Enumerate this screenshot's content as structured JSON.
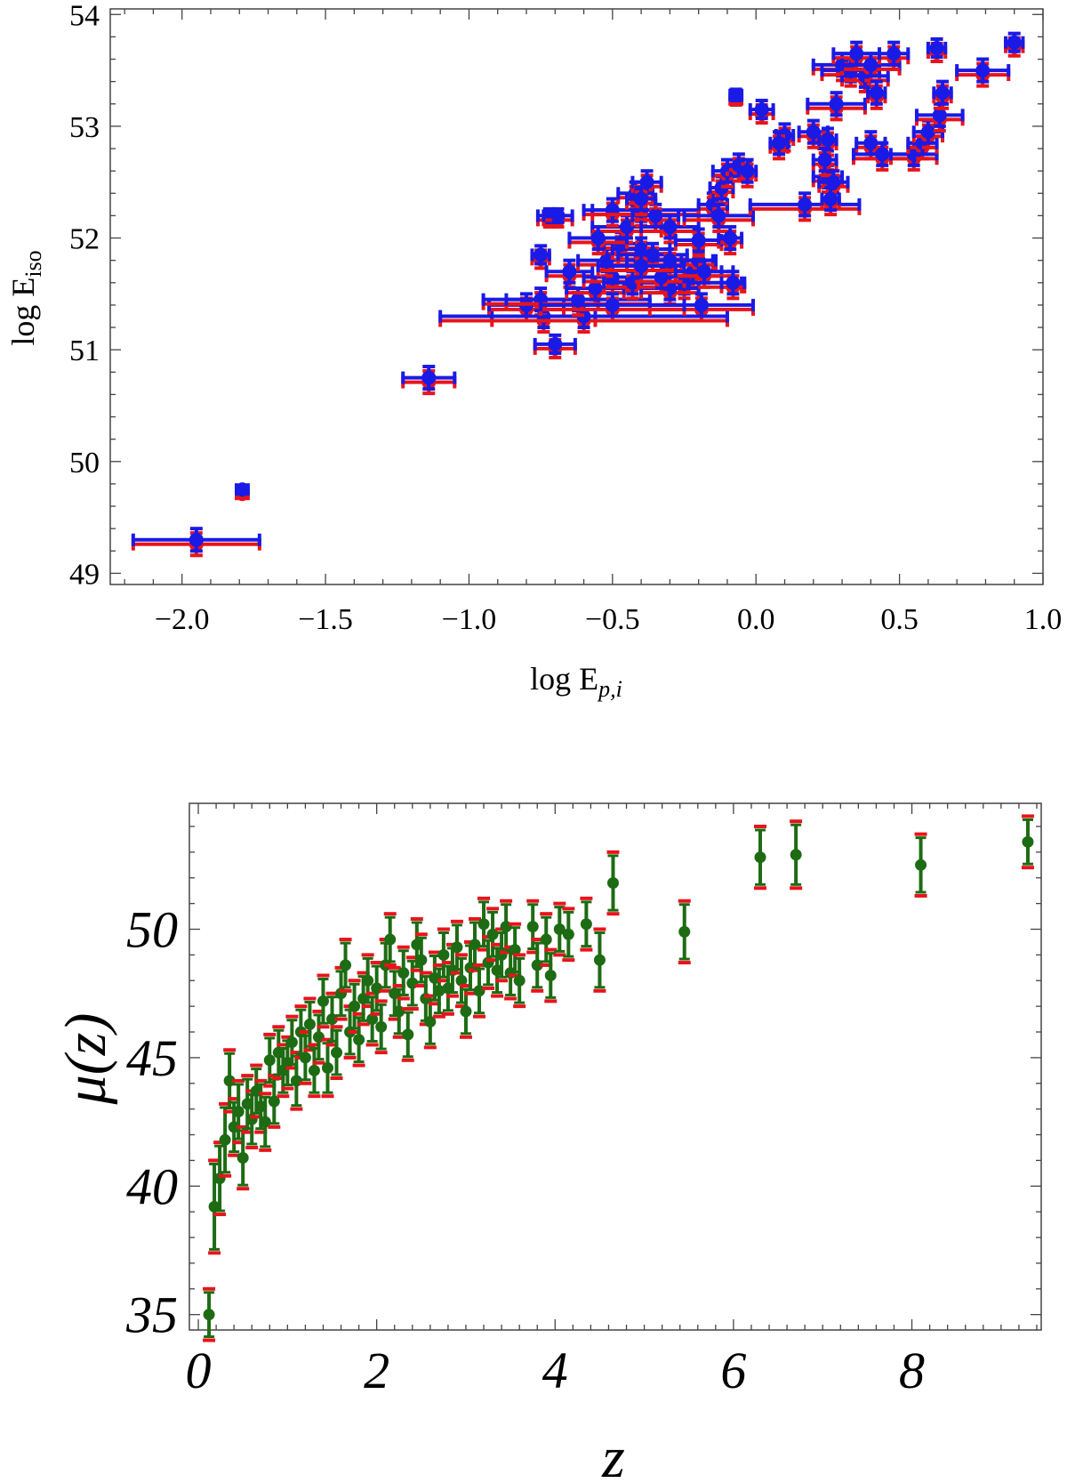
{
  "chart_data": [
    {
      "type": "scatter",
      "xlabel": "log E",
      "xlabel_sub": "p,i",
      "ylabel": "log E",
      "ylabel_sub": "iso",
      "xlim": [
        -2.25,
        1.0
      ],
      "ylim": [
        48.9,
        54.05
      ],
      "xticks": [
        -2.0,
        -1.5,
        -1.0,
        -0.5,
        0.0,
        0.5,
        1.0
      ],
      "xtick_labels": [
        "−2.0",
        "−1.5",
        "−1.0",
        "−0.5",
        "0.0",
        "0.5",
        "1.0"
      ],
      "yticks": [
        49,
        50,
        51,
        52,
        53,
        54
      ],
      "ytick_labels": [
        "49",
        "50",
        "51",
        "52",
        "53",
        "54"
      ],
      "grid": false,
      "colors": {
        "series_a": "#e8141b",
        "series_b": "#1a1ae6"
      },
      "points": [
        [
          -1.95,
          49.3,
          0.22,
          0.1
        ],
        [
          -1.79,
          49.75,
          0.02,
          0.03
        ],
        [
          -1.14,
          50.75,
          0.09,
          0.1
        ],
        [
          -0.75,
          51.85,
          0.03,
          0.08
        ],
        [
          -0.72,
          52.2,
          0.04,
          0.06
        ],
        [
          -0.69,
          52.2,
          0.05,
          0.06
        ],
        [
          -0.7,
          51.05,
          0.07,
          0.08
        ],
        [
          -0.74,
          51.3,
          0.18,
          0.1
        ],
        [
          -0.8,
          51.4,
          0.13,
          0.1
        ],
        [
          -0.75,
          51.45,
          0.2,
          0.1
        ],
        [
          -0.6,
          51.3,
          0.5,
          0.1
        ],
        [
          -0.62,
          51.45,
          0.25,
          0.1
        ],
        [
          -0.65,
          51.7,
          0.08,
          0.1
        ],
        [
          -0.56,
          51.55,
          0.1,
          0.1
        ],
        [
          -0.5,
          51.65,
          0.1,
          0.1
        ],
        [
          -0.52,
          51.8,
          0.1,
          0.1
        ],
        [
          -0.47,
          51.95,
          0.06,
          0.1
        ],
        [
          -0.45,
          52.1,
          0.12,
          0.1
        ],
        [
          -0.5,
          52.25,
          0.07,
          0.1
        ],
        [
          -0.42,
          52.4,
          0.06,
          0.1
        ],
        [
          -0.38,
          52.5,
          0.05,
          0.1
        ],
        [
          -0.4,
          52.25,
          0.2,
          0.1
        ],
        [
          -0.35,
          52.2,
          0.08,
          0.1
        ],
        [
          -0.3,
          52.1,
          0.1,
          0.1
        ],
        [
          -0.4,
          51.9,
          0.1,
          0.1
        ],
        [
          -0.36,
          51.85,
          0.12,
          0.1
        ],
        [
          -0.3,
          51.8,
          0.15,
          0.1
        ],
        [
          -0.22,
          51.7,
          0.1,
          0.1
        ],
        [
          -0.2,
          51.8,
          0.06,
          0.1
        ],
        [
          -0.25,
          51.6,
          0.2,
          0.1
        ],
        [
          -0.3,
          51.55,
          0.1,
          0.1
        ],
        [
          -0.19,
          51.4,
          0.18,
          0.1
        ],
        [
          -0.43,
          51.6,
          0.1,
          0.1
        ],
        [
          -0.33,
          51.65,
          0.08,
          0.1
        ],
        [
          -0.4,
          51.75,
          0.15,
          0.1
        ],
        [
          -0.5,
          51.4,
          0.25,
          0.1
        ],
        [
          -0.2,
          51.98,
          0.08,
          0.1
        ],
        [
          -0.18,
          51.7,
          0.1,
          0.1
        ],
        [
          -0.15,
          52.3,
          0.05,
          0.1
        ],
        [
          -0.12,
          52.45,
          0.04,
          0.1
        ],
        [
          -0.1,
          52.6,
          0.05,
          0.1
        ],
        [
          -0.06,
          52.65,
          0.04,
          0.1
        ],
        [
          -0.03,
          52.6,
          0.03,
          0.1
        ],
        [
          -0.09,
          52.0,
          0.04,
          0.1
        ],
        [
          -0.08,
          51.6,
          0.04,
          0.1
        ],
        [
          -0.13,
          52.2,
          0.12,
          0.1
        ],
        [
          -0.07,
          53.28,
          0.02,
          0.05
        ],
        [
          0.02,
          53.15,
          0.04,
          0.08
        ],
        [
          0.1,
          52.92,
          0.03,
          0.1
        ],
        [
          0.08,
          52.85,
          0.03,
          0.1
        ],
        [
          0.2,
          52.95,
          0.05,
          0.1
        ],
        [
          0.25,
          52.88,
          0.03,
          0.1
        ],
        [
          0.17,
          52.3,
          0.19,
          0.1
        ],
        [
          0.25,
          52.55,
          0.05,
          0.1
        ],
        [
          0.24,
          52.7,
          0.04,
          0.1
        ],
        [
          0.27,
          52.5,
          0.05,
          0.1
        ],
        [
          0.26,
          52.35,
          0.03,
          0.1
        ],
        [
          0.28,
          53.2,
          0.1,
          0.1
        ],
        [
          0.3,
          53.55,
          0.1,
          0.1
        ],
        [
          0.33,
          53.5,
          0.1,
          0.1
        ],
        [
          0.35,
          53.65,
          0.08,
          0.1
        ],
        [
          0.38,
          53.45,
          0.08,
          0.1
        ],
        [
          0.4,
          53.55,
          0.1,
          0.1
        ],
        [
          0.48,
          53.65,
          0.05,
          0.1
        ],
        [
          0.42,
          53.3,
          0.03,
          0.1
        ],
        [
          0.4,
          52.85,
          0.05,
          0.1
        ],
        [
          0.44,
          52.75,
          0.1,
          0.1
        ],
        [
          0.55,
          52.75,
          0.08,
          0.1
        ],
        [
          0.58,
          52.85,
          0.05,
          0.1
        ],
        [
          0.6,
          52.95,
          0.05,
          0.1
        ],
        [
          0.64,
          53.1,
          0.08,
          0.1
        ],
        [
          0.65,
          53.3,
          0.03,
          0.1
        ],
        [
          0.63,
          53.7,
          0.03,
          0.08
        ],
        [
          0.79,
          53.5,
          0.09,
          0.1
        ],
        [
          0.9,
          53.75,
          0.03,
          0.08
        ],
        [
          -0.4,
          52.35,
          0.05,
          0.1
        ],
        [
          -0.55,
          52.0,
          0.1,
          0.1
        ]
      ]
    },
    {
      "type": "scatter",
      "xlabel": "z",
      "ylabel": "μ(z)",
      "xlim": [
        -0.1,
        9.45
      ],
      "ylim": [
        34.4,
        54.9
      ],
      "xticks": [
        0,
        2,
        4,
        6,
        8
      ],
      "xtick_labels": [
        "0",
        "2",
        "4",
        "6",
        "8"
      ],
      "yticks": [
        35,
        40,
        45,
        50
      ],
      "ytick_labels": [
        "35",
        "40",
        "45",
        "50"
      ],
      "grid": false,
      "colors": {
        "error_bar": "#e8141b",
        "point": "#1d6b13"
      },
      "points": [
        [
          0.12,
          35.0,
          1.0
        ],
        [
          0.18,
          39.2,
          1.8
        ],
        [
          0.24,
          40.3,
          1.4
        ],
        [
          0.3,
          41.8,
          1.4
        ],
        [
          0.35,
          44.1,
          1.2
        ],
        [
          0.4,
          42.3,
          1.1
        ],
        [
          0.45,
          42.9,
          1.2
        ],
        [
          0.5,
          41.1,
          1.2
        ],
        [
          0.55,
          43.2,
          1.1
        ],
        [
          0.6,
          42.6,
          1.1
        ],
        [
          0.65,
          43.7,
          1.0
        ],
        [
          0.7,
          43.1,
          1.0
        ],
        [
          0.75,
          42.5,
          1.1
        ],
        [
          0.8,
          44.9,
          1.0
        ],
        [
          0.85,
          43.3,
          1.0
        ],
        [
          0.9,
          45.2,
          1.0
        ],
        [
          0.95,
          44.5,
          1.0
        ],
        [
          1.0,
          44.8,
          1.0
        ],
        [
          1.05,
          45.6,
          1.0
        ],
        [
          1.1,
          44.1,
          1.1
        ],
        [
          1.15,
          46.0,
          1.0
        ],
        [
          1.2,
          45.0,
          1.0
        ],
        [
          1.25,
          46.3,
          1.0
        ],
        [
          1.3,
          44.5,
          1.0
        ],
        [
          1.35,
          45.8,
          1.0
        ],
        [
          1.4,
          47.2,
          1.0
        ],
        [
          1.45,
          44.6,
          1.1
        ],
        [
          1.5,
          46.5,
          1.0
        ],
        [
          1.55,
          45.2,
          1.0
        ],
        [
          1.6,
          47.5,
          1.0
        ],
        [
          1.65,
          48.6,
          1.0
        ],
        [
          1.7,
          46.0,
          1.0
        ],
        [
          1.75,
          47.0,
          1.0
        ],
        [
          1.8,
          45.7,
          1.0
        ],
        [
          1.85,
          47.3,
          1.0
        ],
        [
          1.9,
          48.0,
          1.0
        ],
        [
          1.95,
          46.5,
          1.0
        ],
        [
          2.0,
          47.7,
          1.0
        ],
        [
          2.05,
          46.2,
          1.0
        ],
        [
          2.1,
          48.6,
          1.0
        ],
        [
          2.15,
          49.6,
          1.0
        ],
        [
          2.2,
          47.5,
          1.0
        ],
        [
          2.25,
          46.8,
          1.0
        ],
        [
          2.3,
          48.3,
          1.0
        ],
        [
          2.35,
          45.9,
          1.0
        ],
        [
          2.4,
          47.9,
          1.0
        ],
        [
          2.45,
          49.4,
          1.0
        ],
        [
          2.5,
          48.8,
          1.0
        ],
        [
          2.55,
          47.3,
          1.0
        ],
        [
          2.6,
          46.4,
          1.0
        ],
        [
          2.65,
          48.1,
          1.0
        ],
        [
          2.7,
          47.6,
          1.0
        ],
        [
          2.75,
          49.0,
          1.0
        ],
        [
          2.8,
          47.7,
          1.0
        ],
        [
          2.85,
          48.4,
          1.0
        ],
        [
          2.9,
          49.3,
          1.0
        ],
        [
          2.95,
          48.0,
          1.0
        ],
        [
          3.0,
          46.8,
          1.0
        ],
        [
          3.05,
          48.5,
          1.0
        ],
        [
          3.1,
          49.4,
          1.0
        ],
        [
          3.15,
          47.6,
          1.0
        ],
        [
          3.2,
          50.2,
          1.0
        ],
        [
          3.25,
          48.7,
          1.0
        ],
        [
          3.3,
          49.8,
          1.0
        ],
        [
          3.35,
          48.4,
          1.0
        ],
        [
          3.4,
          49.0,
          1.0
        ],
        [
          3.45,
          50.1,
          1.0
        ],
        [
          3.5,
          48.3,
          1.0
        ],
        [
          3.55,
          49.2,
          1.0
        ],
        [
          3.6,
          48.0,
          1.0
        ],
        [
          3.75,
          50.1,
          1.0
        ],
        [
          3.8,
          48.6,
          1.0
        ],
        [
          3.9,
          49.6,
          1.0
        ],
        [
          3.95,
          48.2,
          1.0
        ],
        [
          4.05,
          50.0,
          1.0
        ],
        [
          4.15,
          49.8,
          1.0
        ],
        [
          4.35,
          50.2,
          1.0
        ],
        [
          4.5,
          48.8,
          1.2
        ],
        [
          4.65,
          51.8,
          1.2
        ],
        [
          5.45,
          49.9,
          1.2
        ],
        [
          6.3,
          52.8,
          1.2
        ],
        [
          6.7,
          52.9,
          1.3
        ],
        [
          8.1,
          52.5,
          1.2
        ],
        [
          9.3,
          53.4,
          1.0
        ]
      ]
    }
  ]
}
